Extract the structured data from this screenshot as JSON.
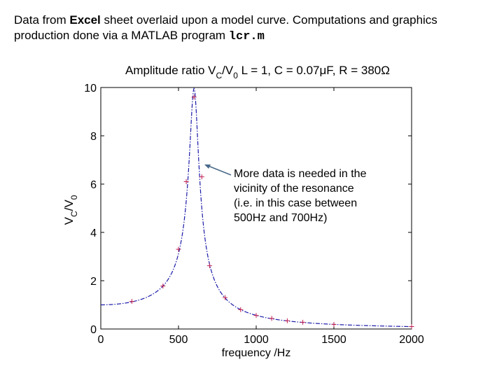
{
  "caption": {
    "part1": "Data from ",
    "bold_word": "Excel",
    "part2": " sheet overlaid upon a model curve. Computations and graphics production done via a MATLAB program ",
    "program_name": "lcr.m"
  },
  "annotation": {
    "lines": [
      "More data is needed in the",
      "vicinity of the resonance",
      "(i.e. in this case between",
      "500Hz and 700Hz)"
    ]
  },
  "chart_data": {
    "type": "line",
    "title": "Amplitude ratio V_C/V_0 L = 1, C = 0.07μF, R = 380Ω",
    "title_parts": {
      "pre": "Amplitude ratio V",
      "sub1": "C",
      "mid": "/V",
      "sub2": "0",
      "post": " L = 1, C = 0.07μF, R = 380Ω"
    },
    "xlabel": "frequency /Hz",
    "ylabel_parts": {
      "v1": "V",
      "s1": "C",
      "slash": "/V",
      "s2": "0"
    },
    "xlim": [
      0,
      2000
    ],
    "ylim": [
      0,
      10
    ],
    "xticks": [
      0,
      500,
      1000,
      1500,
      2000
    ],
    "yticks": [
      0,
      2,
      4,
      6,
      8,
      10
    ],
    "grid": false,
    "model": {
      "L": 1,
      "C_uF": 0.07,
      "R_ohm": 380,
      "f_max": 2000,
      "samples": 800
    },
    "series": [
      {
        "name": "model curve",
        "style": "dash-dot",
        "color": "#1a1aa8"
      },
      {
        "name": "Excel data",
        "style": "plus-markers",
        "color": "#c02050",
        "x": [
          200,
          400,
          500,
          550,
          600,
          650,
          700,
          800,
          900,
          1000,
          1100,
          1200,
          1300,
          1500,
          2000
        ],
        "y": [
          1.14,
          1.78,
          3.3,
          6.1,
          9.6,
          6.3,
          2.62,
          1.3,
          0.8,
          0.56,
          0.44,
          0.34,
          0.28,
          0.19,
          0.1
        ]
      }
    ]
  }
}
